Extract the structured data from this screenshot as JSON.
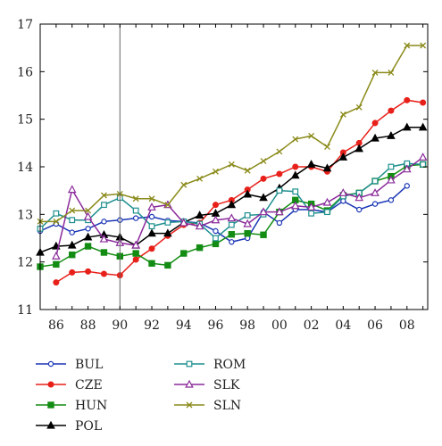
{
  "chart_data": {
    "type": "line",
    "title": "",
    "xlabel": "",
    "ylabel": "",
    "xlim": [
      1985,
      1909
    ],
    "ylim": [
      11,
      17
    ],
    "y_ticks": [
      11,
      12,
      13,
      14,
      15,
      16,
      17
    ],
    "x_ticks": [
      {
        "year": 1986,
        "label": "86"
      },
      {
        "year": 1988,
        "label": "88"
      },
      {
        "year": 1990,
        "label": "90"
      },
      {
        "year": 1992,
        "label": "92"
      },
      {
        "year": 1994,
        "label": "94"
      },
      {
        "year": 1996,
        "label": "96"
      },
      {
        "year": 1998,
        "label": "98"
      },
      {
        "year": 2000,
        "label": "00"
      },
      {
        "year": 2002,
        "label": "02"
      },
      {
        "year": 2004,
        "label": "04"
      },
      {
        "year": 2006,
        "label": "06"
      },
      {
        "year": 2008,
        "label": "08"
      }
    ],
    "reference_line_x": 1990,
    "grid": false,
    "legend_position": "bottom",
    "series": [
      {
        "name": "BUL",
        "color": "#1a35b5",
        "marker": "circle-open",
        "x": [
          1985,
          1986,
          1987,
          1988,
          1989,
          1990,
          1991,
          1992,
          1993,
          1994,
          1995,
          1996,
          1997,
          1998,
          1999,
          2000,
          2001,
          2002,
          2003,
          2004,
          2005,
          2006,
          2007,
          2008
        ],
        "y": [
          12.65,
          12.8,
          12.62,
          12.7,
          12.85,
          12.88,
          12.92,
          12.95,
          12.87,
          12.85,
          12.82,
          12.65,
          12.42,
          12.5,
          13.05,
          12.82,
          13.1,
          13.1,
          13.05,
          13.28,
          13.1,
          13.22,
          13.3,
          13.6
        ]
      },
      {
        "name": "CZE",
        "color": "#e8201a",
        "marker": "circle-filled",
        "x": [
          1986,
          1987,
          1988,
          1989,
          1990,
          1991,
          1992,
          1993,
          1994,
          1995,
          1996,
          1997,
          1998,
          1999,
          2000,
          2001,
          2002,
          2003,
          2004,
          2005,
          2006,
          2007,
          2008,
          2009
        ],
        "y": [
          11.57,
          11.78,
          11.8,
          11.75,
          11.72,
          12.05,
          12.28,
          12.55,
          12.78,
          12.82,
          13.2,
          13.3,
          13.52,
          13.75,
          13.85,
          14.0,
          14.0,
          13.9,
          14.3,
          14.5,
          14.92,
          15.18,
          15.4,
          15.35
        ]
      },
      {
        "name": "HUN",
        "color": "#128c12",
        "marker": "square-filled",
        "x": [
          1985,
          1986,
          1987,
          1988,
          1989,
          1990,
          1991,
          1992,
          1993,
          1994,
          1995,
          1996,
          1997,
          1998,
          1999,
          2000,
          2001,
          2002,
          2003,
          2004,
          2005,
          2006,
          2007,
          2008,
          2009
        ],
        "y": [
          11.9,
          11.95,
          12.15,
          12.33,
          12.2,
          12.12,
          12.18,
          11.97,
          11.93,
          12.18,
          12.3,
          12.38,
          12.58,
          12.6,
          12.57,
          13.05,
          13.3,
          13.22,
          13.08,
          13.4,
          13.45,
          13.7,
          13.8,
          14.02,
          14.05
        ]
      },
      {
        "name": "POL",
        "color": "#000000",
        "marker": "triangle-filled",
        "x": [
          1985,
          1986,
          1987,
          1988,
          1989,
          1990,
          1991,
          1992,
          1993,
          1994,
          1995,
          1996,
          1997,
          1998,
          1999,
          2000,
          2001,
          2002,
          2003,
          2004,
          2005,
          2006,
          2007,
          2008,
          2009
        ],
        "y": [
          12.2,
          12.33,
          12.35,
          12.52,
          12.57,
          12.52,
          12.35,
          12.6,
          12.6,
          12.83,
          12.98,
          13.02,
          13.2,
          13.42,
          13.35,
          13.55,
          13.82,
          14.05,
          13.97,
          14.2,
          14.38,
          14.6,
          14.65,
          14.83,
          14.83
        ]
      },
      {
        "name": "ROM",
        "color": "#1f8f8f",
        "marker": "square-open",
        "x": [
          1985,
          1986,
          1987,
          1988,
          1989,
          1990,
          1991,
          1992,
          1993,
          1994,
          1995,
          1996,
          1997,
          1998,
          1999,
          2000,
          2001,
          2002,
          2003,
          2004,
          2005,
          2006,
          2007,
          2008,
          2009
        ],
        "y": [
          12.7,
          13.02,
          12.88,
          12.88,
          13.2,
          13.35,
          13.08,
          12.75,
          12.83,
          12.85,
          12.8,
          12.5,
          12.78,
          12.98,
          13.0,
          13.5,
          13.48,
          13.02,
          13.05,
          13.38,
          13.45,
          13.7,
          14.0,
          14.07,
          14.05
        ]
      },
      {
        "name": "SLK",
        "color": "#8b2a9b",
        "marker": "triangle-open",
        "x": [
          1986,
          1987,
          1988,
          1989,
          1990,
          1991,
          1992,
          1993,
          1994,
          1995,
          1996,
          1997,
          1998,
          1999,
          2000,
          2001,
          2002,
          2003,
          2004,
          2005,
          2006,
          2007,
          2008,
          2009
        ],
        "y": [
          12.12,
          13.52,
          12.95,
          12.48,
          12.4,
          12.35,
          13.15,
          13.2,
          12.82,
          12.75,
          12.88,
          12.92,
          12.8,
          13.05,
          13.05,
          13.18,
          13.15,
          13.25,
          13.45,
          13.35,
          13.45,
          13.72,
          13.95,
          14.2
        ]
      },
      {
        "name": "SLN",
        "color": "#8a8a1a",
        "marker": "x",
        "x": [
          1985,
          1986,
          1987,
          1988,
          1989,
          1990,
          1991,
          1992,
          1993,
          1994,
          1995,
          1996,
          1997,
          1998,
          1999,
          2000,
          2001,
          2002,
          2003,
          2004,
          2005,
          2006,
          2007,
          2008,
          2009
        ],
        "y": [
          12.85,
          12.85,
          13.08,
          13.08,
          13.4,
          13.43,
          13.33,
          13.33,
          13.2,
          13.62,
          13.75,
          13.9,
          14.05,
          13.92,
          14.12,
          14.32,
          14.58,
          14.65,
          14.42,
          15.1,
          15.25,
          15.98,
          15.98,
          16.55,
          16.55
        ]
      }
    ]
  }
}
